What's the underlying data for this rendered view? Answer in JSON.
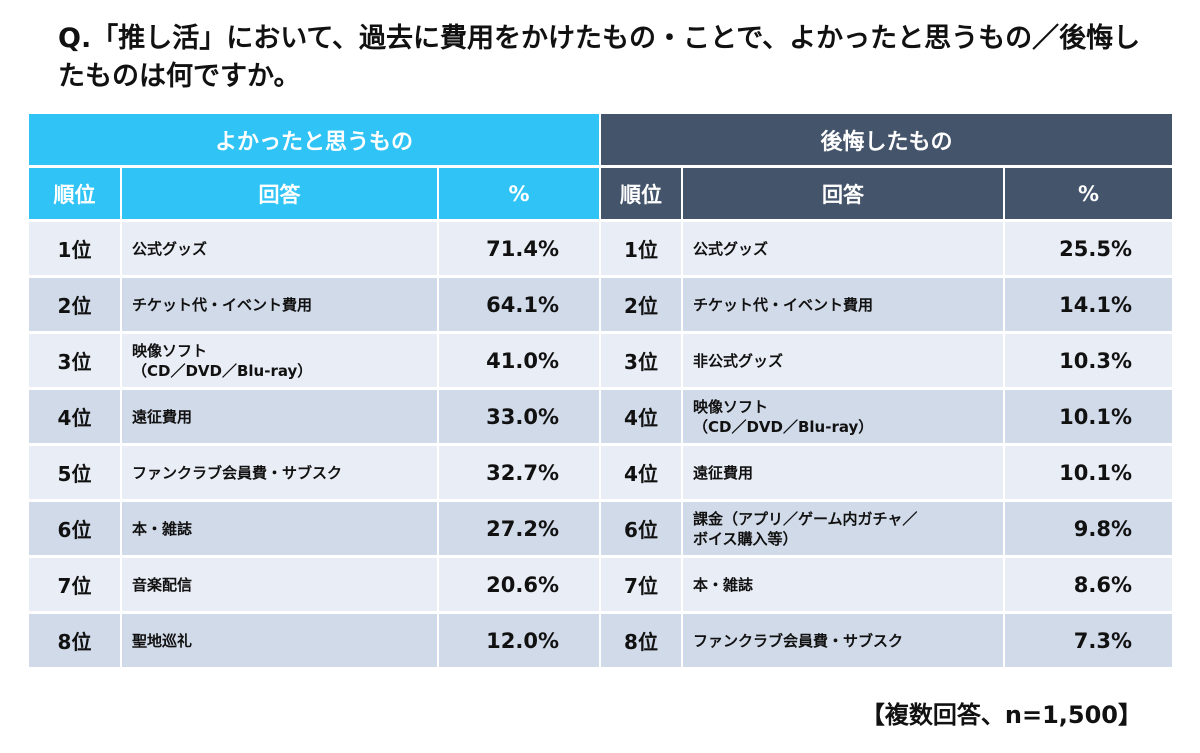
{
  "title": "Q.「推し活」において、過去に費用をかけたもの・ことで、よかったと思うもの／後悔したものは何ですか。",
  "colors": {
    "good_header": "#30c4f6",
    "regret_header": "#44546a",
    "row_light": "#e9edf5",
    "row_dark": "#d1dae9"
  },
  "good": {
    "heading": "よかったと思うもの",
    "columns": [
      "順位",
      "回答",
      "%"
    ],
    "rows": [
      {
        "rank": "1位",
        "answer": "公式グッズ",
        "pct": "71.4%"
      },
      {
        "rank": "2位",
        "answer": "チケット代・イベント費用",
        "pct": "64.1%"
      },
      {
        "rank": "3位",
        "answer": "映像ソフト\n（CD／DVD／Blu-ray）",
        "pct": "41.0%"
      },
      {
        "rank": "4位",
        "answer": "遠征費用",
        "pct": "33.0%"
      },
      {
        "rank": "5位",
        "answer": "ファンクラブ会員費・サブスク",
        "pct": "32.7%"
      },
      {
        "rank": "6位",
        "answer": "本・雑誌",
        "pct": "27.2%"
      },
      {
        "rank": "7位",
        "answer": "音楽配信",
        "pct": "20.6%"
      },
      {
        "rank": "8位",
        "answer": "聖地巡礼",
        "pct": "12.0%"
      }
    ]
  },
  "regret": {
    "heading": "後悔したもの",
    "columns": [
      "順位",
      "回答",
      "%"
    ],
    "rows": [
      {
        "rank": "1位",
        "answer": "公式グッズ",
        "pct": "25.5%"
      },
      {
        "rank": "2位",
        "answer": "チケット代・イベント費用",
        "pct": "14.1%"
      },
      {
        "rank": "3位",
        "answer": "非公式グッズ",
        "pct": "10.3%"
      },
      {
        "rank": "4位",
        "answer": "映像ソフト\n（CD／DVD／Blu-ray）",
        "pct": "10.1%"
      },
      {
        "rank": "4位",
        "answer": "遠征費用",
        "pct": "10.1%"
      },
      {
        "rank": "6位",
        "answer": "課金（アプリ／ゲーム内ガチャ／\nボイス購入等）",
        "pct": "9.8%"
      },
      {
        "rank": "7位",
        "answer": "本・雑誌",
        "pct": "8.6%"
      },
      {
        "rank": "8位",
        "answer": "ファンクラブ会員費・サブスク",
        "pct": "7.3%"
      }
    ]
  },
  "note": "【複数回答、n=1,500】"
}
